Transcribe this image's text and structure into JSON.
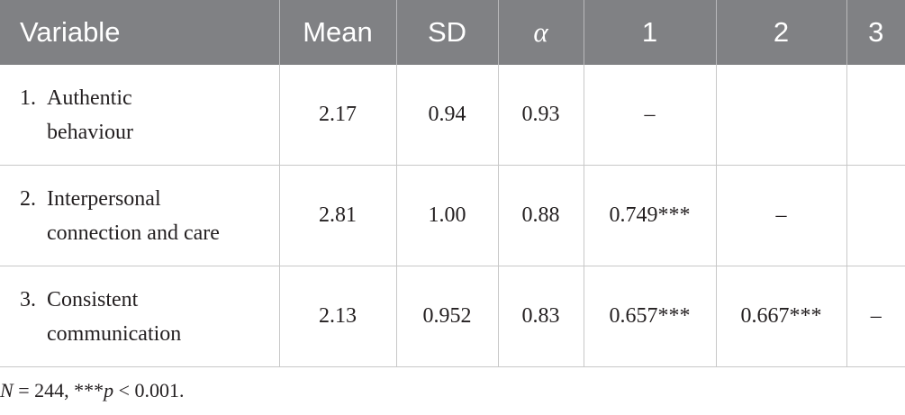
{
  "table": {
    "header": [
      "Variable",
      "Mean",
      "SD",
      "α",
      "1",
      "2",
      "3"
    ],
    "rows": [
      [
        {
          "number": "1.",
          "lines": [
            "Authentic",
            "behaviour"
          ]
        },
        "2.17",
        "0.94",
        "0.93",
        "–",
        "",
        ""
      ],
      [
        {
          "number": "2.",
          "lines": [
            "Interpersonal",
            "connection and care"
          ]
        },
        "2.81",
        "1.00",
        "0.88",
        "0.749***",
        "–",
        ""
      ],
      [
        {
          "number": "3.",
          "lines": [
            "Consistent",
            "communication"
          ]
        },
        "2.13",
        "0.952",
        "0.83",
        "0.657***",
        "0.667***",
        "–"
      ]
    ],
    "footnote": [
      "N",
      " = 244, ***",
      "p",
      " < 0.001."
    ]
  }
}
